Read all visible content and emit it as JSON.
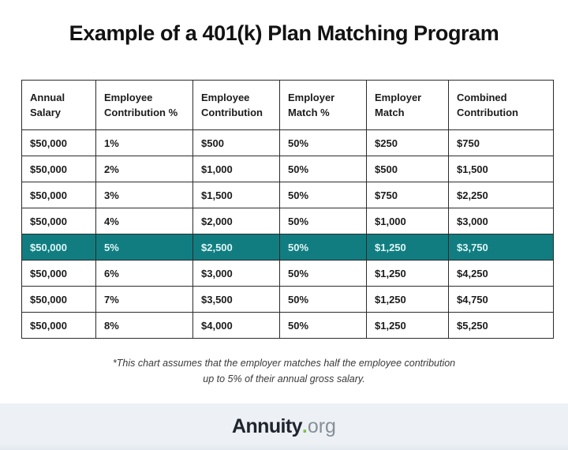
{
  "chart_data": {
    "type": "table",
    "title": "Example of a 401(k) Plan Matching Program",
    "columns": [
      "Annual Salary",
      "Employee Contribution %",
      "Employee Contribution",
      "Employer Match %",
      "Employer Match",
      "Combined Contribution"
    ],
    "rows": [
      [
        "$50,000",
        "1%",
        "$500",
        "50%",
        "$250",
        "$750"
      ],
      [
        "$50,000",
        "2%",
        "$1,000",
        "50%",
        "$500",
        "$1,500"
      ],
      [
        "$50,000",
        "3%",
        "$1,500",
        "50%",
        "$750",
        "$2,250"
      ],
      [
        "$50,000",
        "4%",
        "$2,000",
        "50%",
        "$1,000",
        "$3,000"
      ],
      [
        "$50,000",
        "5%",
        "$2,500",
        "50%",
        "$1,250",
        "$3,750"
      ],
      [
        "$50,000",
        "6%",
        "$3,000",
        "50%",
        "$1,250",
        "$4,250"
      ],
      [
        "$50,000",
        "7%",
        "$3,500",
        "50%",
        "$1,250",
        "$4,750"
      ],
      [
        "$50,000",
        "8%",
        "$4,000",
        "50%",
        "$1,250",
        "$5,250"
      ]
    ],
    "highlighted_row_index": 4,
    "footnote": [
      "*This chart assumes that the employer matches half the employee contribution",
      "up to 5% of their annual gross salary."
    ]
  },
  "footer": {
    "brand": "Annuity",
    "dot": ".",
    "suffix": "org"
  },
  "colors": {
    "highlight_bg": "#117d81",
    "highlight_text": "#dff6f4",
    "border": "#2b2b2b",
    "text": "#1c1c1c",
    "footer_bg": "#edf1f5",
    "dot_green": "#7ebf4d",
    "org_gray": "#878e98",
    "brand_dark": "#20242e"
  }
}
